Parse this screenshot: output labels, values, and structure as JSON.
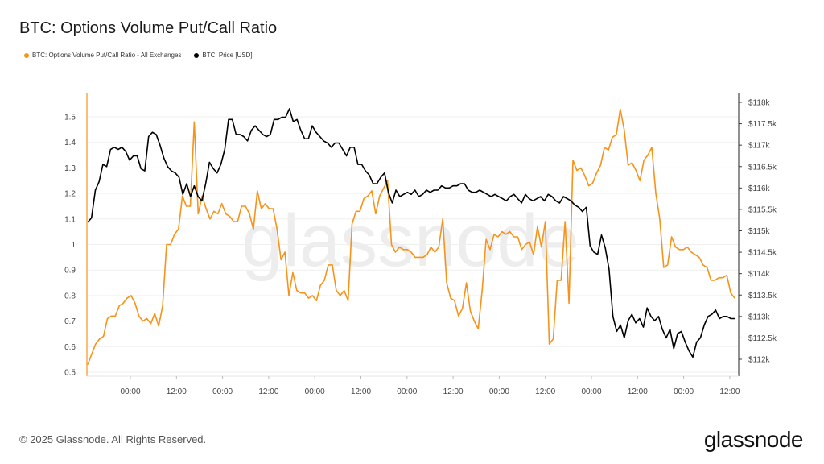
{
  "header": {
    "title": "BTC: Options Volume Put/Call Ratio"
  },
  "legend": [
    {
      "label": "BTC: Options Volume Put/Call Ratio - All Exchanges",
      "color": "#f7931a"
    },
    {
      "label": "BTC: Price [USD]",
      "color": "#000000"
    }
  ],
  "watermark": "glassnode",
  "footer": {
    "copyright": "© 2025 Glassnode. All Rights Reserved.",
    "brand": "glassnode"
  },
  "chart_data": {
    "type": "line",
    "grid": true,
    "x_tick_labels": [
      "00:00",
      "12:00",
      "00:00",
      "12:00",
      "00:00",
      "12:00",
      "00:00",
      "12:00",
      "00:00",
      "12:00",
      "00:00",
      "12:00",
      "00:00",
      "12:00"
    ],
    "y_left": {
      "ticks": [
        "0.5",
        "0.6",
        "0.7",
        "0.8",
        "0.9",
        "1",
        "1.1",
        "1.2",
        "1.3",
        "1.4",
        "1.5"
      ],
      "range": [
        0.5,
        1.5
      ]
    },
    "y_right": {
      "ticks": [
        "$112k",
        "$112.5k",
        "$113k",
        "$113.5k",
        "$114k",
        "$114.5k",
        "$115k",
        "$115.5k",
        "$116k",
        "$116.5k",
        "$117k",
        "$117.5k",
        "$118k"
      ],
      "range": [
        112000,
        118000
      ]
    },
    "series": [
      {
        "name": "BTC: Options Volume Put/Call Ratio - All Exchanges",
        "axis": "left",
        "color": "#f7931a",
        "values": [
          0.53,
          0.57,
          0.61,
          0.63,
          0.64,
          0.71,
          0.72,
          0.72,
          0.76,
          0.77,
          0.79,
          0.8,
          0.77,
          0.72,
          0.7,
          0.71,
          0.69,
          0.73,
          0.68,
          0.76,
          1.0,
          1.0,
          1.04,
          1.06,
          1.19,
          1.15,
          1.15,
          1.48,
          1.12,
          1.19,
          1.14,
          1.1,
          1.13,
          1.12,
          1.16,
          1.12,
          1.11,
          1.09,
          1.09,
          1.15,
          1.15,
          1.12,
          1.06,
          1.21,
          1.14,
          1.16,
          1.14,
          1.14,
          1.06,
          0.94,
          0.97,
          0.8,
          0.89,
          0.82,
          0.81,
          0.81,
          0.79,
          0.8,
          0.78,
          0.84,
          0.86,
          0.92,
          0.92,
          0.82,
          0.8,
          0.82,
          0.78,
          1.08,
          1.13,
          1.13,
          1.18,
          1.19,
          1.21,
          1.12,
          1.19,
          1.22,
          1.25,
          1.0,
          0.97,
          0.99,
          0.98,
          0.98,
          0.97,
          0.95,
          0.95,
          0.95,
          0.96,
          0.99,
          0.97,
          0.99,
          1.1,
          0.85,
          0.79,
          0.78,
          0.72,
          0.75,
          0.85,
          0.74,
          0.7,
          0.67,
          0.82,
          1.02,
          0.98,
          1.04,
          1.03,
          1.05,
          1.04,
          1.05,
          1.03,
          1.03,
          0.98,
          1.0,
          1.01,
          0.96,
          1.07,
          0.99,
          1.09,
          0.61,
          0.63,
          0.86,
          0.86,
          1.09,
          0.77,
          1.33,
          1.29,
          1.3,
          1.27,
          1.23,
          1.24,
          1.28,
          1.31,
          1.38,
          1.37,
          1.42,
          1.43,
          1.53,
          1.45,
          1.31,
          1.32,
          1.29,
          1.25,
          1.33,
          1.35,
          1.38,
          1.2,
          1.1,
          0.91,
          0.92,
          1.03,
          0.99,
          0.98,
          0.98,
          0.99,
          0.97,
          0.96,
          0.95,
          0.92,
          0.91,
          0.86,
          0.86,
          0.87,
          0.87,
          0.88,
          0.81,
          0.79
        ]
      },
      {
        "name": "BTC: Price [USD]",
        "axis": "right",
        "color": "#000000",
        "values": [
          115200,
          115300,
          115950,
          116150,
          116550,
          116500,
          116900,
          116950,
          116900,
          116950,
          116850,
          116650,
          116750,
          116750,
          116450,
          116400,
          117200,
          117300,
          117250,
          117000,
          116700,
          116500,
          116400,
          116350,
          116250,
          115850,
          116100,
          115800,
          116050,
          115800,
          115700,
          116100,
          116600,
          116450,
          116350,
          116550,
          116900,
          117600,
          117600,
          117250,
          117250,
          117200,
          117100,
          117350,
          117450,
          117350,
          117250,
          117200,
          117250,
          117600,
          117600,
          117650,
          117650,
          117850,
          117550,
          117600,
          117350,
          117150,
          117150,
          117450,
          117300,
          117200,
          117100,
          117050,
          116950,
          117050,
          117050,
          116900,
          116750,
          116950,
          116950,
          116550,
          116550,
          116400,
          116300,
          116100,
          116100,
          116250,
          116350,
          115900,
          115650,
          115950,
          115800,
          115850,
          115900,
          115850,
          115950,
          115800,
          115850,
          115950,
          115900,
          115950,
          115950,
          116050,
          116000,
          116000,
          116050,
          116050,
          116100,
          116100,
          115950,
          115900,
          115900,
          115950,
          115900,
          115850,
          115800,
          115850,
          115800,
          115750,
          115700,
          115800,
          115850,
          115750,
          115650,
          115850,
          115750,
          115700,
          115750,
          115800,
          115700,
          115850,
          115800,
          115700,
          115650,
          115800,
          115750,
          115700,
          115600,
          115550,
          115450,
          115550,
          114650,
          114500,
          114450,
          114900,
          114600,
          114100,
          113000,
          112650,
          112800,
          112500,
          112900,
          113050,
          112850,
          112950,
          112750,
          113200,
          113000,
          112900,
          113000,
          112700,
          112500,
          112700,
          112250,
          112600,
          112650,
          112400,
          112200,
          112050,
          112400,
          112500,
          112800,
          113000,
          113050,
          113150,
          112950,
          113000,
          113000,
          112950,
          112950
        ]
      }
    ]
  }
}
